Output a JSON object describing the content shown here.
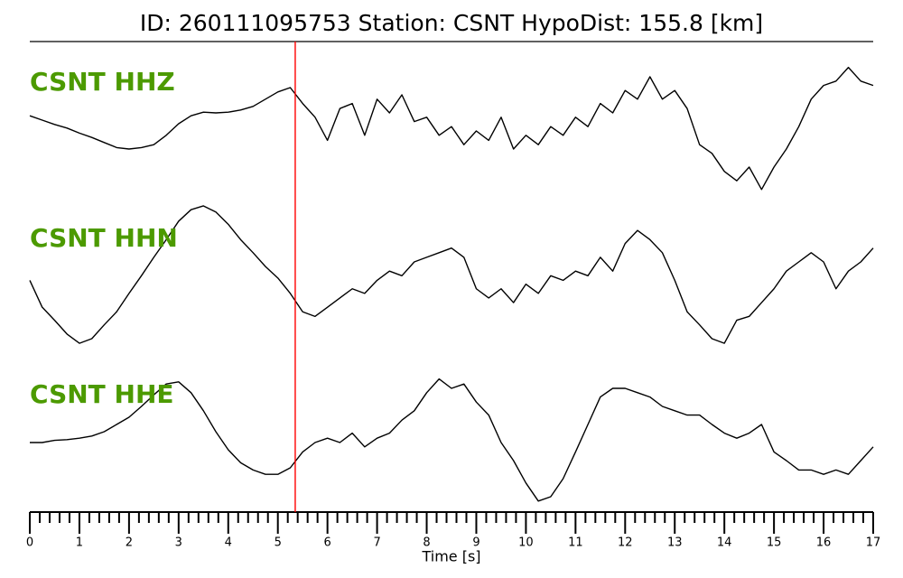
{
  "chart_data": {
    "type": "line",
    "title": "ID: 260111095753   Station: CSNT   HypoDist:   155.8 [km]",
    "xlabel": "Time [s]",
    "xlim": [
      0,
      17
    ],
    "xticks": [
      0,
      1,
      2,
      3,
      4,
      5,
      6,
      7,
      8,
      9,
      10,
      11,
      12,
      13,
      14,
      15,
      16,
      17
    ],
    "xminorticks": [
      0.2,
      0.4,
      0.6,
      0.8,
      1.2,
      1.4,
      1.6,
      1.8,
      2.2,
      2.4,
      2.6,
      2.8,
      3.2,
      3.4,
      3.6,
      3.8,
      4.2,
      4.4,
      4.6,
      4.8,
      5.2,
      5.4,
      5.6,
      5.8,
      6.2,
      6.4,
      6.6,
      6.8,
      7.2,
      7.4,
      7.6,
      7.8,
      8.2,
      8.4,
      8.6,
      8.8,
      9.2,
      9.4,
      9.6,
      9.8,
      10.2,
      10.4,
      10.6,
      10.8,
      11.2,
      11.4,
      11.6,
      11.8,
      12.2,
      12.4,
      12.6,
      12.8,
      13.2,
      13.4,
      13.6,
      13.8,
      14.2,
      14.4,
      14.6,
      14.8,
      15.2,
      15.4,
      15.6,
      15.8,
      16.2,
      16.4,
      16.6,
      16.8
    ],
    "ylim": [
      -1,
      1
    ],
    "label_color": "#4c9a00",
    "pick": {
      "x": 5.35,
      "color": "#ff0000"
    },
    "x": [
      0,
      0.25,
      0.5,
      0.75,
      1,
      1.25,
      1.5,
      1.75,
      2,
      2.25,
      2.5,
      2.75,
      3,
      3.25,
      3.5,
      3.75,
      4,
      4.25,
      4.5,
      4.75,
      5,
      5.25,
      5.5,
      5.75,
      6,
      6.25,
      6.5,
      6.75,
      7,
      7.25,
      7.5,
      7.75,
      8,
      8.25,
      8.5,
      8.75,
      9,
      9.25,
      9.5,
      9.75,
      10,
      10.25,
      10.5,
      10.75,
      11,
      11.25,
      11.5,
      11.75,
      12,
      12.25,
      12.5,
      12.75,
      13,
      13.25,
      13.5,
      13.75,
      14,
      14.25,
      14.5,
      14.75,
      15,
      15.25,
      15.5,
      15.75,
      16,
      16.25,
      16.5,
      16.75,
      17
    ],
    "series": [
      {
        "name": "CSNT HHZ",
        "color": "#000000",
        "values": [
          0.21,
          0.15,
          0.09,
          0.04,
          -0.03,
          -0.09,
          -0.16,
          -0.23,
          -0.25,
          -0.23,
          -0.19,
          -0.06,
          0.1,
          0.21,
          0.26,
          0.25,
          0.26,
          0.29,
          0.34,
          0.44,
          0.54,
          0.6,
          0.38,
          0.19,
          -0.13,
          0.31,
          0.38,
          -0.06,
          0.44,
          0.25,
          0.5,
          0.13,
          0.19,
          -0.06,
          0.06,
          -0.19,
          0,
          -0.13,
          0.19,
          -0.25,
          -0.06,
          -0.19,
          0.06,
          -0.06,
          0.19,
          0.06,
          0.38,
          0.25,
          0.56,
          0.44,
          0.75,
          0.44,
          0.56,
          0.31,
          -0.19,
          -0.31,
          -0.56,
          -0.69,
          -0.5,
          -0.81,
          -0.5,
          -0.25,
          0.06,
          0.44,
          0.63,
          0.69,
          0.88,
          0.69,
          0.63
        ]
      },
      {
        "name": "CSNT HHN",
        "color": "#000000",
        "values": [
          -0.04,
          -0.39,
          -0.56,
          -0.74,
          -0.86,
          -0.8,
          -0.62,
          -0.45,
          -0.21,
          0.02,
          0.26,
          0.49,
          0.73,
          0.88,
          0.93,
          0.85,
          0.69,
          0.49,
          0.32,
          0.14,
          -0.01,
          -0.21,
          -0.45,
          -0.51,
          -0.39,
          -0.27,
          -0.15,
          -0.21,
          -0.04,
          0.08,
          0.02,
          0.2,
          0.26,
          0.32,
          0.38,
          0.26,
          -0.15,
          -0.27,
          -0.15,
          -0.33,
          -0.09,
          -0.21,
          0.02,
          -0.04,
          0.08,
          0.02,
          0.26,
          0.08,
          0.44,
          0.61,
          0.49,
          0.32,
          -0.04,
          -0.45,
          -0.62,
          -0.8,
          -0.86,
          -0.56,
          -0.51,
          -0.33,
          -0.15,
          0.08,
          0.2,
          0.32,
          0.2,
          -0.15,
          0.08,
          0.2,
          0.38
        ]
      },
      {
        "name": "CSNT HHE",
        "color": "#000000",
        "values": [
          0,
          0,
          0.03,
          0.04,
          0.06,
          0.09,
          0.15,
          0.25,
          0.35,
          0.5,
          0.66,
          0.81,
          0.84,
          0.69,
          0.44,
          0.15,
          -0.1,
          -0.28,
          -0.38,
          -0.44,
          -0.44,
          -0.35,
          -0.13,
          0,
          0.06,
          0,
          0.13,
          -0.06,
          0.06,
          0.13,
          0.31,
          0.44,
          0.69,
          0.88,
          0.75,
          0.81,
          0.56,
          0.38,
          0,
          -0.25,
          -0.56,
          -0.81,
          -0.75,
          -0.5,
          -0.13,
          0.25,
          0.63,
          0.75,
          0.75,
          0.69,
          0.63,
          0.5,
          0.44,
          0.38,
          0.38,
          0.25,
          0.13,
          0.06,
          0.13,
          0.25,
          -0.13,
          -0.25,
          -0.38,
          -0.38,
          -0.44,
          -0.38,
          -0.44,
          -0.25,
          -0.06
        ]
      }
    ]
  }
}
